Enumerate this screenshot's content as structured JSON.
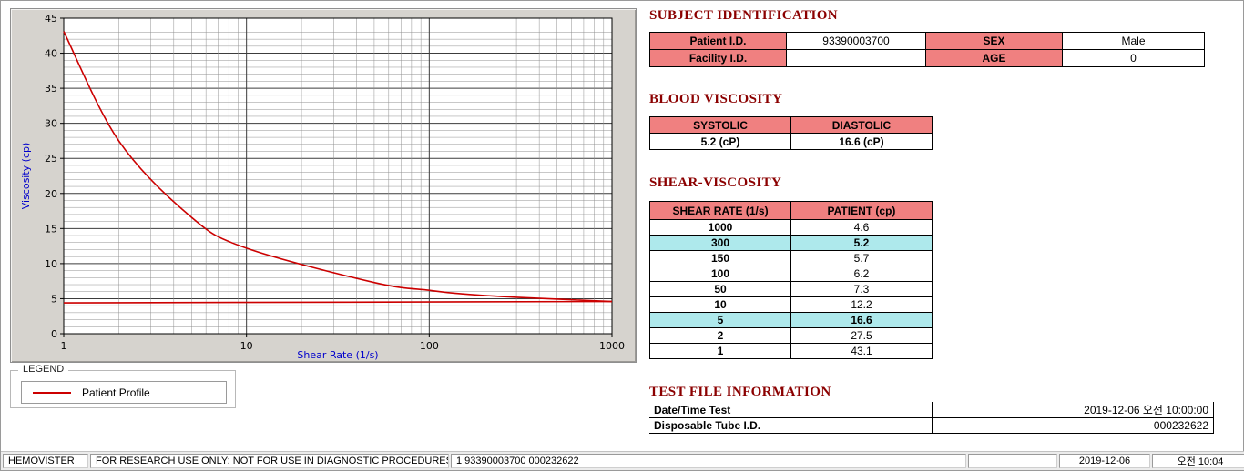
{
  "chart_data": {
    "type": "line",
    "title": "",
    "xlabel": "Shear Rate (1/s)",
    "ylabel": "Viscosity (cp)",
    "x_scale": "log",
    "xlim": [
      1,
      1000
    ],
    "ylim": [
      0,
      45
    ],
    "x_ticks": [
      1,
      10,
      100,
      1000
    ],
    "y_ticks": [
      0,
      5,
      10,
      15,
      20,
      25,
      30,
      35,
      40,
      45
    ],
    "grid": true,
    "legend_position": "below-left",
    "series": [
      {
        "name": "Patient Profile",
        "color": "#cc0000",
        "x": [
          1,
          2,
          5,
          10,
          50,
          100,
          150,
          300,
          1000
        ],
        "y": [
          43.1,
          27.5,
          16.6,
          12.2,
          7.3,
          6.2,
          5.7,
          5.2,
          4.6
        ]
      },
      {
        "name": "baseline",
        "color": "#cc0000",
        "x": [
          1,
          1000
        ],
        "y": [
          4.4,
          4.6
        ]
      }
    ]
  },
  "legend": {
    "title": "LEGEND",
    "entry": "Patient Profile",
    "line_color": "#cc0000"
  },
  "subject": {
    "title": "SUBJECT IDENTIFICATION",
    "rows": [
      {
        "label1": "Patient I.D.",
        "value1": "93390003700",
        "label2": "SEX",
        "value2": "Male"
      },
      {
        "label1": "Facility I.D.",
        "value1": "",
        "label2": "AGE",
        "value2": "0"
      }
    ]
  },
  "blood_viscosity": {
    "title": "BLOOD VISCOSITY",
    "headers": [
      "SYSTOLIC",
      "DIASTOLIC"
    ],
    "values": [
      "5.2 (cP)",
      "16.6 (cP)"
    ]
  },
  "shear_viscosity": {
    "title": "SHEAR-VISCOSITY",
    "headers": [
      "SHEAR RATE (1/s)",
      "PATIENT (cp)"
    ],
    "rows": [
      {
        "rate": "1000",
        "value": "4.6",
        "highlight": false
      },
      {
        "rate": "300",
        "value": "5.2",
        "highlight": true
      },
      {
        "rate": "150",
        "value": "5.7",
        "highlight": false
      },
      {
        "rate": "100",
        "value": "6.2",
        "highlight": false
      },
      {
        "rate": "50",
        "value": "7.3",
        "highlight": false
      },
      {
        "rate": "10",
        "value": "12.2",
        "highlight": false
      },
      {
        "rate": "5",
        "value": "16.6",
        "highlight": true
      },
      {
        "rate": "2",
        "value": "27.5",
        "highlight": false
      },
      {
        "rate": "1",
        "value": "43.1",
        "highlight": false
      }
    ]
  },
  "test_file": {
    "title": "TEST FILE INFORMATION",
    "rows": [
      {
        "label": "Date/Time Test",
        "value": "2019-12-06   오전 10:00:00"
      },
      {
        "label": "Disposable Tube I.D.",
        "value": "000232622"
      }
    ]
  },
  "status_bar": {
    "panels": [
      "HEMOVISTER",
      "FOR RESEARCH USE ONLY: NOT FOR USE IN DIAGNOSTIC PROCEDURES",
      "1  93390003700  000232622",
      "",
      "2019-12-06",
      "오전 10:04"
    ]
  },
  "colors": {
    "section_title": "#8b0000",
    "table_header_bg": "#f08080",
    "highlight_row_bg": "#aee9ec",
    "curve": "#cc0000",
    "axis_label": "#0000cc",
    "chart_panel_bg": "#d6d3ce"
  }
}
